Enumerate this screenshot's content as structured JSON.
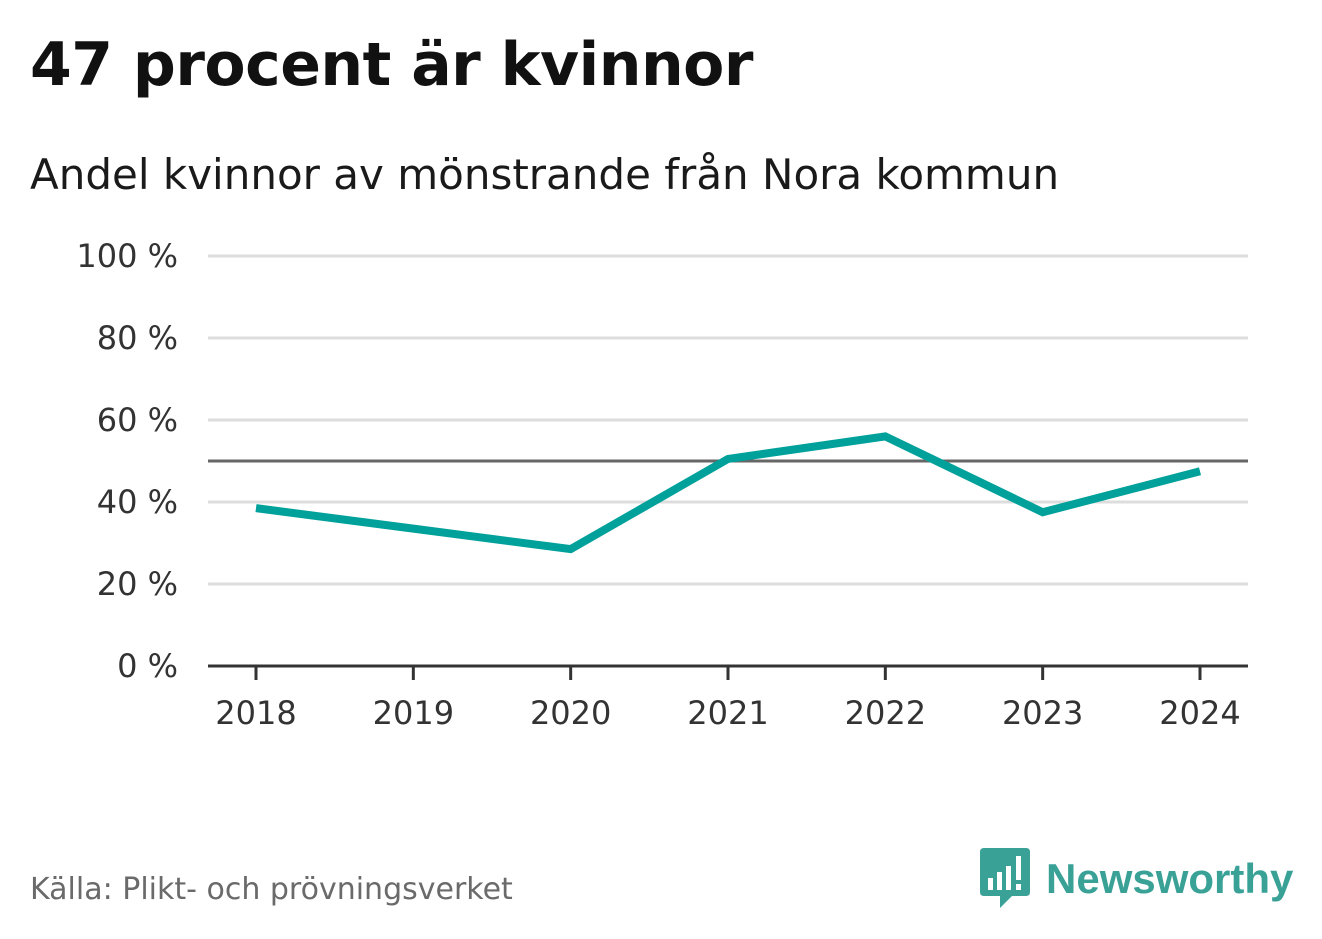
{
  "title": "47 procent är kvinnor",
  "subtitle": "Andel kvinnor av mönstrande från Nora kommun",
  "source": "Källa: Plikt- och prövningsverket",
  "brand": {
    "name": "Newsworthy",
    "icon": "chat-bubble-bar-chart-icon",
    "color": "#3aa197"
  },
  "chart_data": {
    "type": "line",
    "x": [
      "2018",
      "2019",
      "2020",
      "2021",
      "2022",
      "2023",
      "2024"
    ],
    "series": [
      {
        "values": [
          38.5,
          33.5,
          28.5,
          50.5,
          56,
          37.5,
          47.5
        ],
        "color": "#00a19a"
      }
    ],
    "ylim": [
      0,
      100
    ],
    "yticks": [
      0,
      20,
      40,
      60,
      80,
      100
    ],
    "ytick_labels": [
      "0 %",
      "20 %",
      "40 %",
      "60 %",
      "80 %",
      "100 %"
    ],
    "reference_line": 50,
    "grid": true,
    "legend": "none"
  }
}
